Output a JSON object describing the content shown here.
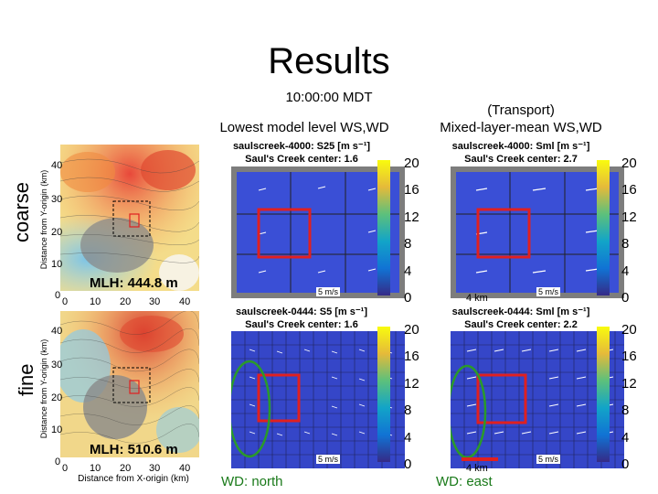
{
  "slide": {
    "title": "Results",
    "time": "10:00:00 MDT",
    "col_lowest_header": "Lowest model level WS,WD",
    "col_mixed_header_1": "(Transport)",
    "col_mixed_header_2": "Mixed-layer-mean WS,WD",
    "row_coarse": "coarse",
    "row_fine": "fine",
    "y_axis_label": "Distance from Y-origin (km)",
    "x_axis_label": "Distance from X-origin (km)",
    "coarse_terrain": {
      "mlh": "MLH: 444.8 m",
      "yticks": [
        "40",
        "30",
        "20",
        "10",
        "0"
      ],
      "xticks": [
        "0",
        "10",
        "20",
        "30",
        "40"
      ]
    },
    "fine_terrain": {
      "mlh": "MLH: 510.6 m",
      "yticks": [
        "40",
        "30",
        "20",
        "10",
        "0"
      ],
      "xticks": [
        "0",
        "10",
        "20",
        "30",
        "40"
      ]
    },
    "panels": {
      "p1_title1": "saulscreek-4000: S25 [m s⁻¹]",
      "p1_title2": "Saul's Creek center:  1.6",
      "p2_title1": "saulscreek-4000: Sml [m s⁻¹]",
      "p2_title2": "Saul's Creek center:  2.7",
      "p3_title1": "saulscreek-0444: S5 [m s⁻¹]",
      "p3_title2": "Saul's Creek center:  1.6",
      "p4_title1": "saulscreek-0444: Sml [m s⁻¹]",
      "p4_title2": "Saul's Creek center:  2.2",
      "speed_ref": "5 m/s",
      "scale_4km": "4 km",
      "wd_north": "WD: north",
      "wd_east": "WD: east"
    },
    "colorbar_ticks": [
      "20",
      "16",
      "12",
      "8",
      "4",
      "0"
    ],
    "colors": {
      "field_blue": "#3a4fd6",
      "box_red": "#e02020",
      "ellipse_green": "#2a9a2a"
    }
  }
}
